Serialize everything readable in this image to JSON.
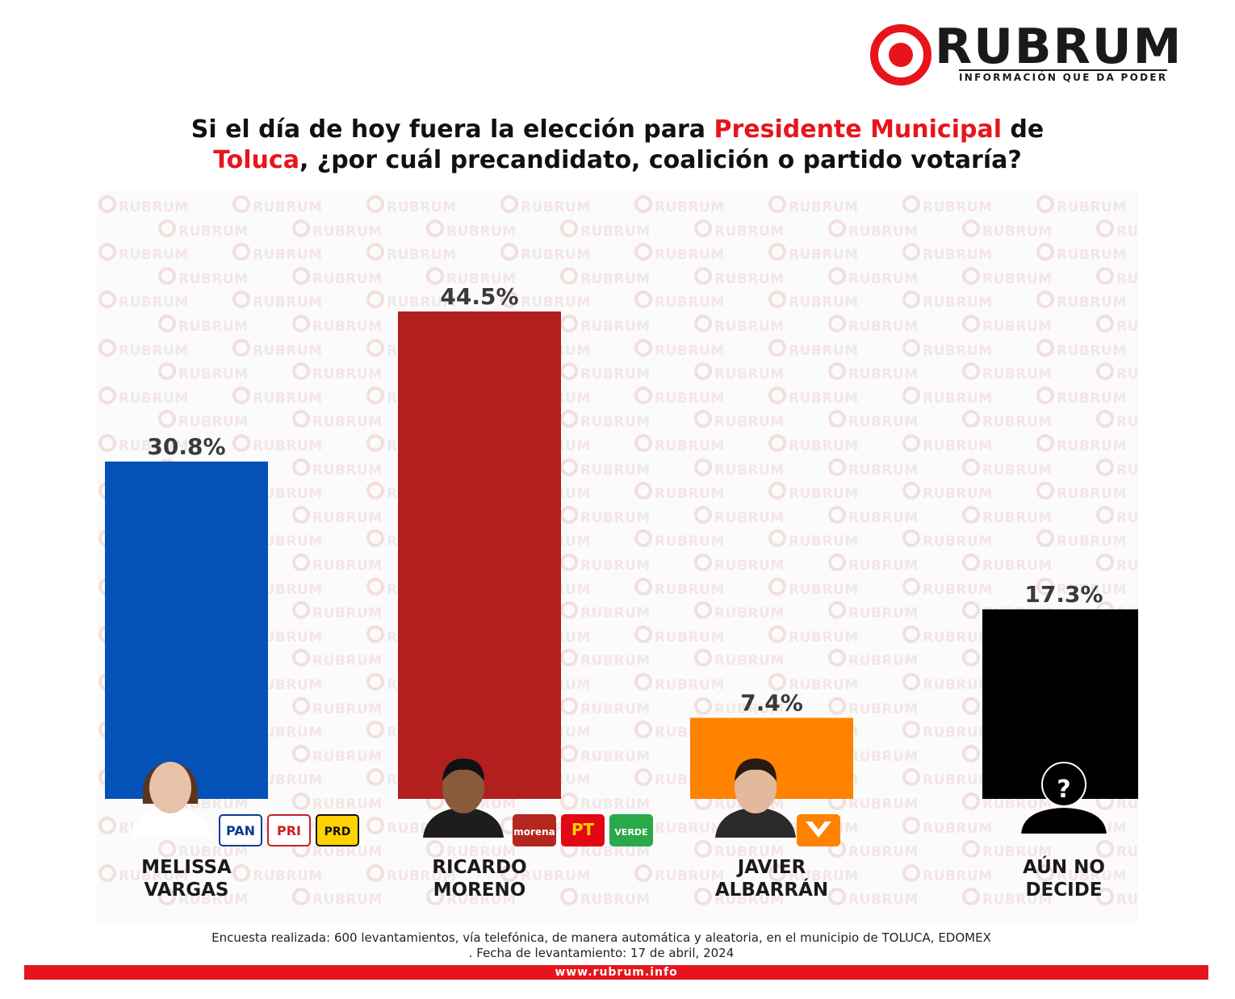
{
  "logo": {
    "word": "RUBRUM",
    "tagline": "INFORMACIÓN QUE DA PODER"
  },
  "title": {
    "part1": "Si el día de hoy fuera la elección para ",
    "highlight1": "Presidente Municipal",
    "part2": " de",
    "highlight2": "Toluca",
    "part3": ", ¿por cuál precandidato, coalición o partido votaría?"
  },
  "watermark_text": "RUBRUM",
  "chart_data": {
    "type": "bar",
    "title": "Si el día de hoy fuera la elección para Presidente Municipal de Toluca, ¿por cuál precandidato, coalición o partido votaría?",
    "xlabel": "",
    "ylabel": "",
    "unit": "%",
    "grid": false,
    "legend": "none",
    "categories": [
      "MELISSA VARGAS",
      "RICARDO MORENO",
      "JAVIER ALBARRÁN",
      "AÚN NO DECIDE"
    ],
    "name_lines": [
      [
        "MELISSA",
        "VARGAS"
      ],
      [
        "RICARDO",
        "MORENO"
      ],
      [
        "JAVIER",
        "ALBARRÁN"
      ],
      [
        "AÚN NO",
        "DECIDE"
      ]
    ],
    "values": [
      30.8,
      44.5,
      7.4,
      17.3
    ],
    "value_labels": [
      "30.8%",
      "44.5%",
      "7.4%",
      "17.3%"
    ],
    "colors": [
      "#0452b8",
      "#b31e1e",
      "#ff8200",
      "#000000"
    ],
    "ylim": [
      0,
      44.5
    ],
    "party_logos": [
      [
        {
          "icon": "pan-logo-icon",
          "text": "PAN"
        },
        {
          "icon": "pri-logo-icon",
          "text": "PRI"
        },
        {
          "icon": "prd-logo-icon",
          "text": "PRD"
        }
      ],
      [
        {
          "icon": "morena-logo-icon",
          "text": "morena"
        },
        {
          "icon": "pt-logo-icon",
          "text": "PT"
        },
        {
          "icon": "verde-logo-icon",
          "text": "VERDE"
        }
      ],
      [
        {
          "icon": "movimiento-ciudadano-logo-icon",
          "text": ""
        }
      ],
      []
    ],
    "undecided_symbol": "?"
  },
  "footer": {
    "note_line1": "Encuesta realizada: 600 levantamientos, vía telefónica, de manera automática y aleatoria, en el municipio de TOLUCA, EDOMEX",
    "note_line2": ". Fecha de levantamiento: 17 de abril, 2024",
    "website": "www.rubrum.info"
  }
}
